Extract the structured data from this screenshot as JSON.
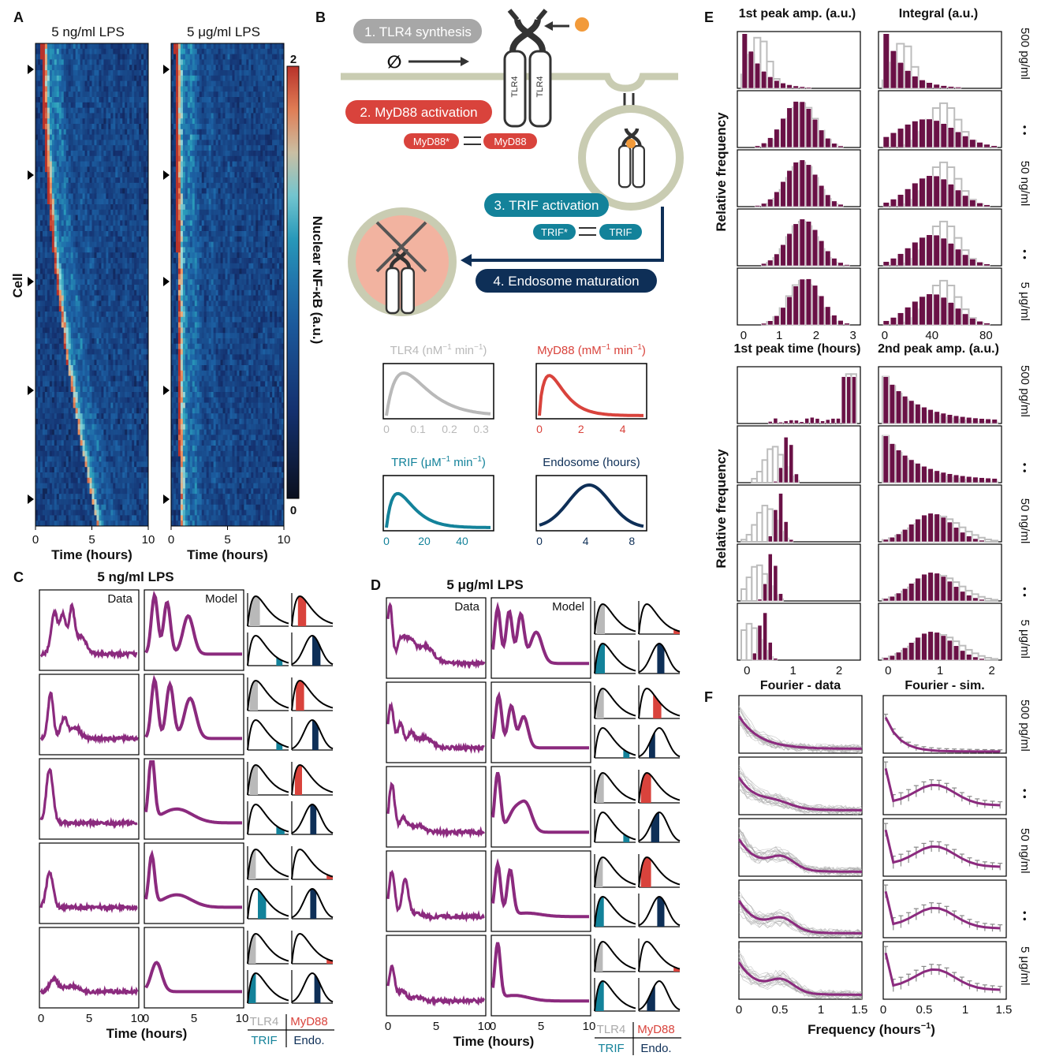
{
  "colors": {
    "maroon": "#6a1146",
    "purple": "#8b2a7e",
    "teal": "#13829a",
    "navy": "#0e2f57",
    "red": "#d9433c",
    "grey": "#b9b9b9",
    "membrane": "#c9ccb2",
    "orange": "#f29a3a",
    "salmon": "#f2b3a0"
  },
  "panel_letters": [
    "A",
    "B",
    "C",
    "D",
    "E",
    "F"
  ],
  "A": {
    "titles": [
      "5 ng/ml LPS",
      "5 μg/ml LPS"
    ],
    "ylabel": "Cell",
    "xlabel": "Time (hours)",
    "xticks": [
      "0",
      "5",
      "10"
    ],
    "colorbar_label": "Nuclear NF-κB (a.u.)",
    "colorbar_ticks": [
      "2",
      "0"
    ]
  },
  "B": {
    "steps": [
      "1. TLR4 synthesis",
      "2. MyD88 activation",
      "3. TRIF activation",
      "4. Endosome maturation"
    ],
    "receptor": "TLR4",
    "null_symbol": "∅",
    "myd88_pair": [
      "MyD88*",
      "MyD88"
    ],
    "trif_pair": [
      "TRIF*",
      "TRIF"
    ],
    "dist_titles": [
      {
        "name": "TLR4",
        "unit": "(nM",
        "sup": "−1",
        "tail": " min",
        "sup2": "−1",
        "close": ")"
      },
      {
        "name": "MyD88",
        "unit": "(mM",
        "sup": "−1",
        "tail": " min",
        "sup2": "−1",
        "close": ")"
      },
      {
        "name": "TRIF",
        "unit": "(μM",
        "sup": "−1",
        "tail": " min",
        "sup2": "−1",
        "close": ")"
      },
      {
        "name": "Endosome",
        "unit": "(hours)",
        "sup": "",
        "tail": "",
        "sup2": "",
        "close": ""
      }
    ],
    "dist_ticks": [
      [
        "0",
        "0.1",
        "0.2",
        "0.3"
      ],
      [
        "0",
        "2",
        "4"
      ],
      [
        "0",
        "20",
        "40"
      ],
      [
        "0",
        "4",
        "8"
      ]
    ]
  },
  "C": {
    "title": "5 ng/ml LPS",
    "col_labels": [
      "Data",
      "Model"
    ],
    "xticks": [
      "0",
      "5",
      "10"
    ],
    "xlabel": "Time (hours)",
    "legend": [
      "TLR4",
      "MyD88",
      "TRIF",
      "Endo."
    ]
  },
  "D": {
    "title": "5 μg/ml LPS",
    "col_labels": [
      "Data",
      "Model"
    ],
    "xticks": [
      "0",
      "5",
      "10"
    ],
    "xlabel": "Time (hours)",
    "legend": [
      "TLR4",
      "MyD88",
      "TRIF",
      "Endo."
    ]
  },
  "E": {
    "titles_top": [
      "1st peak amp. (a.u.)",
      "Integral (a.u.)"
    ],
    "titles_bottom": [
      "1st peak time (hours)",
      "2nd peak amp. (a.u.)"
    ],
    "ylabel": "Relative frequency",
    "xticks_top": [
      [
        "0",
        "1",
        "2",
        "3"
      ],
      [
        "0",
        "40",
        "80"
      ]
    ],
    "xticks_bottom": [
      [
        "0",
        "1",
        "2"
      ],
      [
        "0",
        "1",
        "2"
      ]
    ],
    "dose_labels": [
      "500 pg/ml",
      "50 ng/ml",
      "5 μg/ml"
    ],
    "dots": "• •"
  },
  "F": {
    "titles": [
      "Fourier - data",
      "Fourier - sim."
    ],
    "xticks": [
      "0",
      "0.5",
      "1",
      "1.5"
    ],
    "xlabel": "Frequency (hours",
    "xlabel_sup": "−1",
    "xlabel_close": ")",
    "dose_labels": [
      "500 pg/ml",
      "50 ng/ml",
      "5 μg/ml"
    ],
    "dots": "• •"
  },
  "chart_data": [
    {
      "type": "heatmap",
      "title": "5 ng/ml LPS",
      "xlabel": "Time (hours)",
      "ylabel": "Cell",
      "xlim": [
        0,
        10
      ],
      "colorbar": "Nuclear NF-κB (a.u.)",
      "clim": [
        0,
        2
      ]
    },
    {
      "type": "heatmap",
      "title": "5 μg/ml LPS",
      "xlabel": "Time (hours)",
      "ylabel": "Cell",
      "xlim": [
        0,
        10
      ],
      "colorbar": "Nuclear NF-κB (a.u.)",
      "clim": [
        0,
        2
      ]
    },
    {
      "type": "line",
      "title": "TLR4 (nM−1 min−1)",
      "xlim": [
        0,
        0.3
      ]
    },
    {
      "type": "line",
      "title": "MyD88 (mM−1 min−1)",
      "xlim": [
        0,
        5
      ]
    },
    {
      "type": "line",
      "title": "TRIF (μM−1 min−1)",
      "xlim": [
        0,
        55
      ]
    },
    {
      "type": "line",
      "title": "Endosome (hours)",
      "xlim": [
        0,
        9
      ]
    },
    {
      "type": "line",
      "title": "5 ng/ml LPS",
      "xlabel": "Time (hours)",
      "xlim": [
        0,
        10
      ],
      "series": [
        {
          "name": "Data"
        },
        {
          "name": "Model"
        }
      ]
    },
    {
      "type": "line",
      "title": "5 μg/ml LPS",
      "xlabel": "Time (hours)",
      "xlim": [
        0,
        10
      ],
      "series": [
        {
          "name": "Data"
        },
        {
          "name": "Model"
        }
      ]
    },
    {
      "type": "bar",
      "title": "1st peak amp. (a.u.)",
      "xlim": [
        0,
        3
      ],
      "rows": [
        "500 pg/ml",
        "50 ng/ml",
        "5 μg/ml"
      ]
    },
    {
      "type": "bar",
      "title": "Integral (a.u.)",
      "xlim": [
        0,
        80
      ]
    },
    {
      "type": "bar",
      "title": "1st peak time (hours)",
      "xlim": [
        0,
        2.5
      ]
    },
    {
      "type": "bar",
      "title": "2nd peak amp. (a.u.)",
      "xlim": [
        0,
        2.2
      ]
    },
    {
      "type": "line",
      "title": "Fourier - data",
      "xlabel": "Frequency (hours−1)",
      "xlim": [
        0,
        1.5
      ]
    },
    {
      "type": "line",
      "title": "Fourier - sim.",
      "xlabel": "Frequency (hours−1)",
      "xlim": [
        0,
        1.5
      ]
    }
  ]
}
